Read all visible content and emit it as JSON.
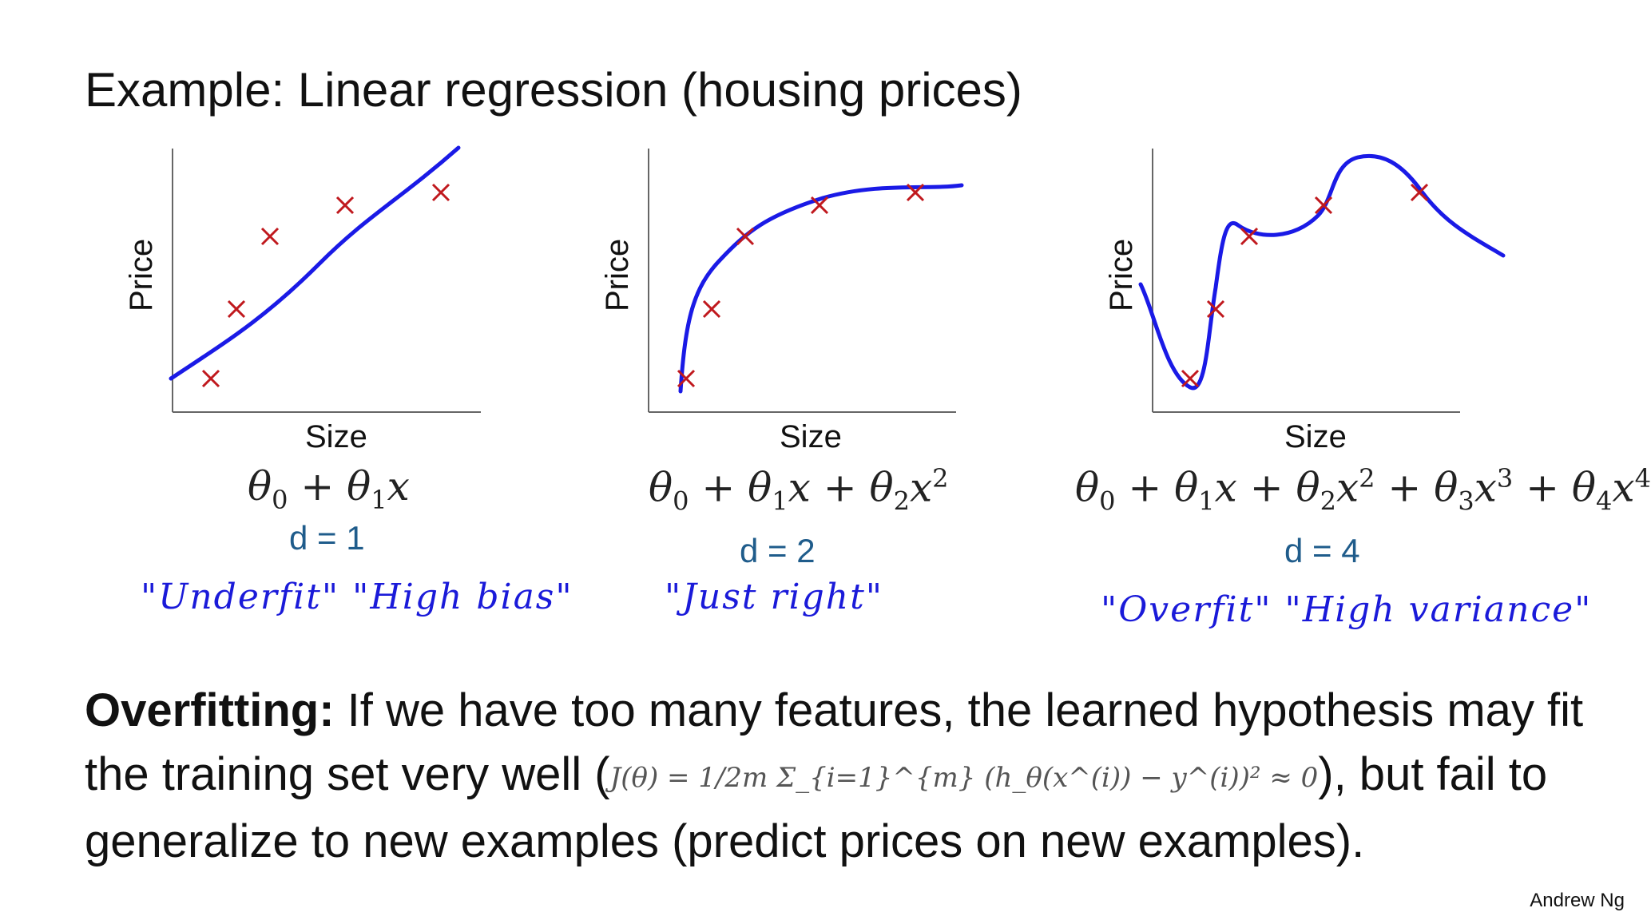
{
  "slide_title": "Example: Linear regression (housing prices)",
  "plots": [
    {
      "ylabel": "Price",
      "xlabel": "Size",
      "formula_html": "θ<sub>0</sub> + θ<sub>1</sub>x",
      "degree": "d = 1",
      "note": "\"Underfit\"    \"High bias\""
    },
    {
      "ylabel": "Price",
      "xlabel": "Size",
      "formula_html": "θ<sub>0</sub> + θ<sub>1</sub>x + θ<sub>2</sub>x<sup>2</sup>",
      "degree": "d = 2",
      "note": "\"Just right\""
    },
    {
      "ylabel": "Price",
      "xlabel": "Size",
      "formula_html": "θ<sub>0</sub> + θ<sub>1</sub>x + θ<sub>2</sub>x<sup>2</sup> + θ<sub>3</sub>x<sup>3</sup> + θ<sub>4</sub>x<sup>4</sup>",
      "degree": "d = 4",
      "note": "\"Overfit\"    \"High variance\""
    }
  ],
  "paragraph": {
    "bold_lead": "Overfitting:",
    "text_1": " If we have too many features, the learned hypothesis may fit the training set very well (",
    "cost_function": "J(θ) = 1/2m Σ_{i=1}^{m} (h_θ(x^(i)) − y^(i))² ≈ 0",
    "text_2": "), but fail to generalize to new examples (predict prices on new examples)."
  },
  "credit": "Andrew Ng",
  "colors": {
    "curve": "#1a1ae6",
    "points": "#c0191e",
    "degree_label": "#1f5c8b",
    "handwriting": "#1a1ad9"
  }
}
